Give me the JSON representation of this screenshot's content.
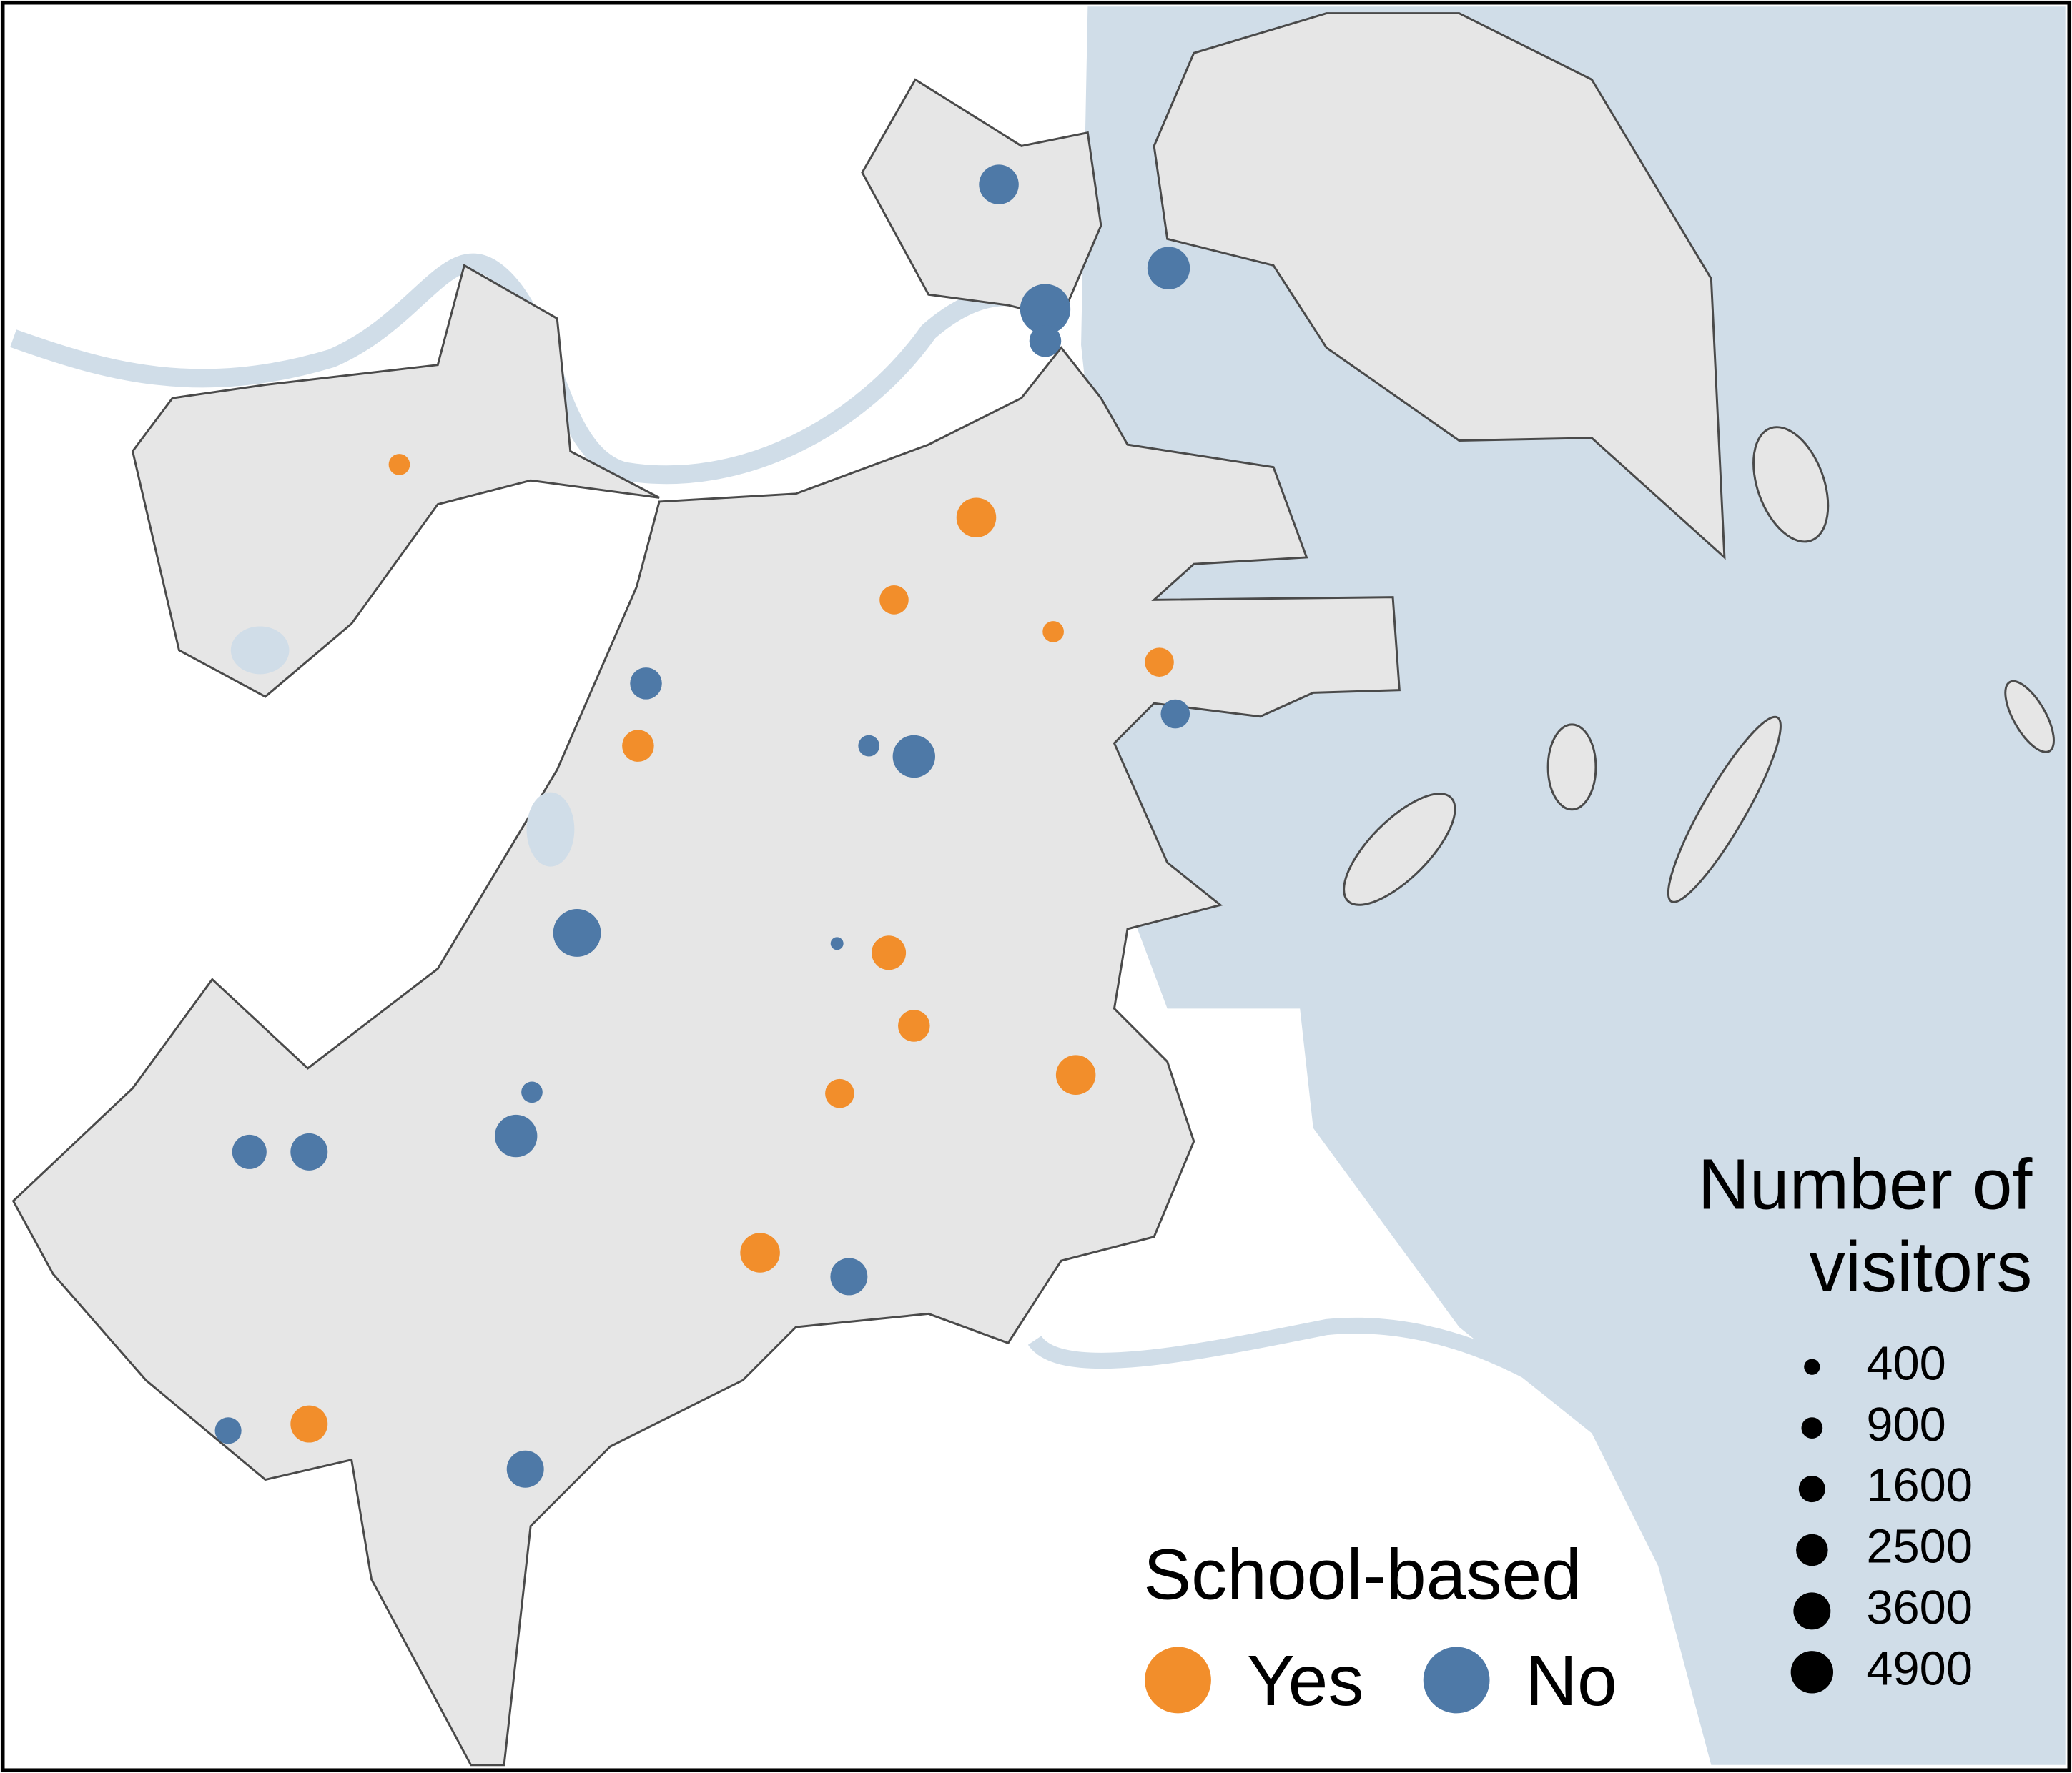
{
  "chart_data": {
    "type": "map",
    "legend_title": "School-based",
    "series": [
      {
        "name": "Yes",
        "color": "#f28e2b",
        "values": [
          900,
          4200,
          2000,
          900,
          2000,
          2500,
          3000,
          2500,
          4200,
          2000,
          4200,
          3600
        ]
      },
      {
        "name": "No",
        "color": "#4e79a7",
        "values": [
          4200,
          4900,
          7200,
          2500,
          2500,
          900,
          4900,
          2000,
          6400,
          200,
          900,
          4900,
          3000,
          3600,
          3600,
          1600,
          3600
        ]
      }
    ],
    "size_title": "Number of visitors",
    "size_values": [
      400,
      900,
      1600,
      2500,
      3600,
      4900
    ]
  }
}
